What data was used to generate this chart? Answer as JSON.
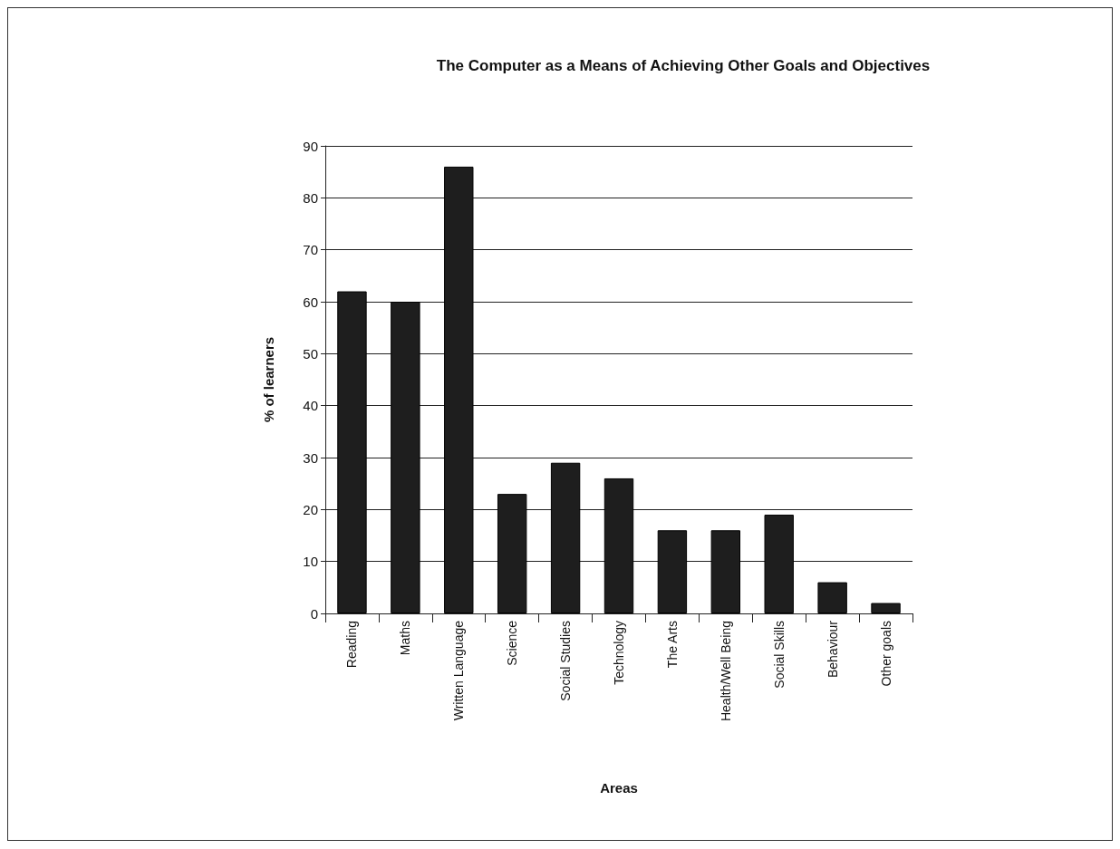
{
  "chart_data": {
    "type": "bar",
    "title": "The Computer as a Means of Achieving Other Goals and Objectives",
    "xlabel": "Areas",
    "ylabel": "% of learners",
    "categories": [
      "Reading",
      "Maths",
      "Written Language",
      "Science",
      "Social Studies",
      "Technology",
      "The Arts",
      "Health/Well Being",
      "Social Skills",
      "Behaviour",
      "Other goals"
    ],
    "values": [
      62,
      60,
      86,
      23,
      29,
      26,
      16,
      16,
      19,
      6,
      2
    ],
    "color": "#1e1e1e",
    "ylim": [
      0,
      90
    ],
    "yticks": [
      0,
      10,
      20,
      30,
      40,
      50,
      60,
      70,
      80,
      90
    ],
    "grid": "y"
  }
}
